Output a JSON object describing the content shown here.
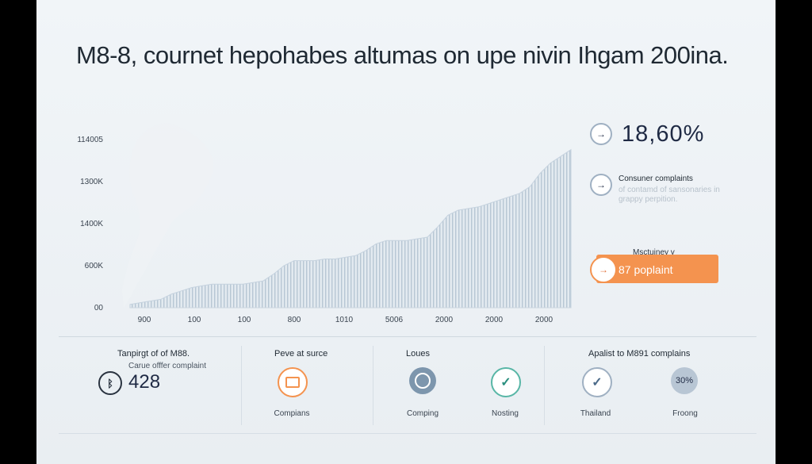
{
  "title": "M8-8, cournet hepohabes altumas on upe nivin Ihgam 200ina.",
  "chart_data": {
    "type": "area",
    "y_tick_labels": [
      "114005",
      "1300K",
      "1400K",
      "600K",
      "00"
    ],
    "x_tick_labels": [
      "900",
      "100",
      "100",
      "800",
      "1010",
      "5006",
      "2000",
      "2000",
      "2000"
    ],
    "ylim": [
      0,
      100
    ],
    "grid": false,
    "values": [
      2,
      3,
      4,
      5,
      8,
      10,
      12,
      13,
      14,
      14,
      14,
      14,
      15,
      16,
      20,
      25,
      28,
      28,
      28,
      29,
      29,
      30,
      31,
      34,
      38,
      40,
      40,
      40,
      41,
      42,
      48,
      55,
      58,
      59,
      60,
      62,
      64,
      66,
      68,
      72,
      80,
      86,
      90,
      94
    ],
    "colors": {
      "fill": "#dde6ee",
      "stripe": "#b9c8d6",
      "line": "#c5d2de"
    }
  },
  "side": {
    "stat_value": "18,60%",
    "note_title": "Consuner complaints",
    "note_sub": "of contamd of sansonaries in grappy perpition.",
    "muted_label": "Msctuiney y",
    "pill_text": "87 poplaint",
    "arrow_glyph": "→",
    "accent": "#f4934f"
  },
  "bottom": {
    "s1_head": "Tanpirgt of of M88.",
    "s1_sub": "Carue offfer complaint",
    "s1_value": "428",
    "s2_head": "Peve at surce",
    "s2_label": "Compians",
    "s3_head": "Loues",
    "s3_label1": "Comping",
    "s3_label2": "Nosting",
    "s4_head": "Apalist to M891 complains",
    "s4_label1": "Thailand",
    "s4_label2": "Froong",
    "s4_badge": "30%"
  }
}
